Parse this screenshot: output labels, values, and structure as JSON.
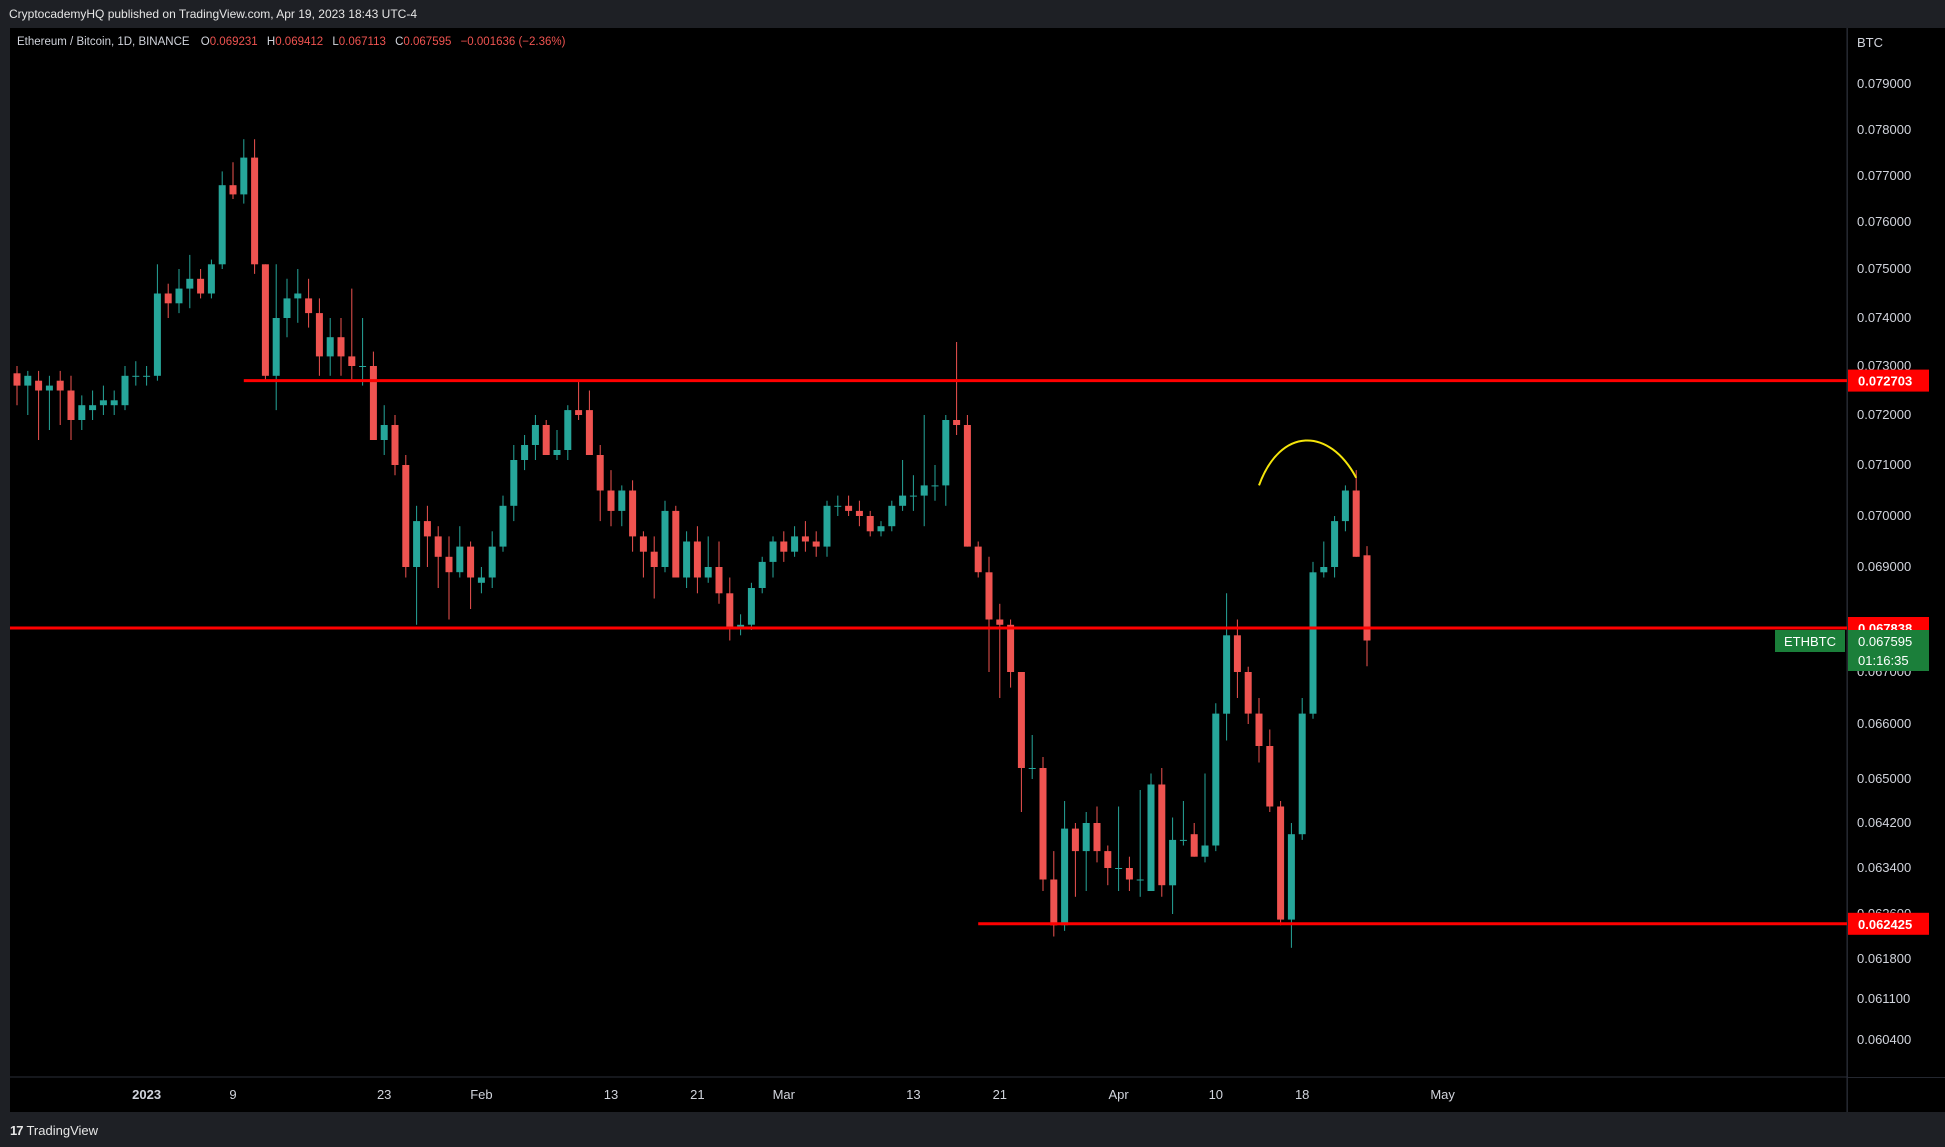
{
  "header": {
    "published_by": "CryptocademyHQ published on TradingView.com, Apr 19, 2023 18:43 UTC-4",
    "symbol": "Ethereum / Bitcoin, 1D, BINANCE",
    "o_label": "O",
    "o_value": "0.069231",
    "h_label": "H",
    "h_value": "0.069412",
    "l_label": "L",
    "l_value": "0.067113",
    "c_label": "C",
    "c_value": "0.067595",
    "change": "−0.001636 (−2.36%)"
  },
  "footer": {
    "brand": "TradingView",
    "brand_mark": "17"
  },
  "colors": {
    "up": "#26a69a",
    "down": "#ef5350",
    "level_line": "#ff0000",
    "current_price": "#1b7f3a",
    "arc": "#f5e50a",
    "background": "#000000"
  },
  "chart_data": {
    "type": "candlestick",
    "symbol": "ETHBTC",
    "currency_label": "BTC",
    "yticks": [
      0.079,
      0.078,
      0.077,
      0.076,
      0.075,
      0.074,
      0.073,
      0.072,
      0.071,
      0.07,
      0.069,
      0.067,
      0.066,
      0.065,
      0.0642,
      0.0634,
      0.0626,
      0.0618,
      0.0611,
      0.0604
    ],
    "ytick_labels": [
      "0.079000",
      "0.078000",
      "0.077000",
      "0.076000",
      "0.075000",
      "0.074000",
      "0.073000",
      "0.072000",
      "0.071000",
      "0.070000",
      "0.069000",
      "0.067000",
      "0.066000",
      "0.065000",
      "0.064200",
      "0.063400",
      "0.062600",
      "0.061800",
      "0.061100",
      "0.060400"
    ],
    "xticks": [
      {
        "date": "2023-01-01",
        "label": "2023",
        "bold": true
      },
      {
        "date": "2023-01-09",
        "label": "9"
      },
      {
        "date": "2023-01-23",
        "label": "23"
      },
      {
        "date": "2023-02-01",
        "label": "Feb"
      },
      {
        "date": "2023-02-13",
        "label": "13"
      },
      {
        "date": "2023-02-21",
        "label": "21"
      },
      {
        "date": "2023-03-01",
        "label": "Mar"
      },
      {
        "date": "2023-03-13",
        "label": "13"
      },
      {
        "date": "2023-03-21",
        "label": "21"
      },
      {
        "date": "2023-04-01",
        "label": "Apr"
      },
      {
        "date": "2023-04-10",
        "label": "10"
      },
      {
        "date": "2023-04-18",
        "label": "18"
      },
      {
        "date": "2023-05-01",
        "label": "May"
      }
    ],
    "levels": [
      {
        "price": 0.072703,
        "label": "0.072703",
        "from": "2023-01-10"
      },
      {
        "price": 0.067838,
        "label": "0.067838",
        "from": "start"
      },
      {
        "price": 0.062425,
        "label": "0.062425",
        "from": "2023-03-19"
      }
    ],
    "current": {
      "symbol_label": "ETHBTC",
      "price": 0.067595,
      "label": "0.067595",
      "countdown": "01:16:35"
    },
    "arc": {
      "start_date": "2023-04-14",
      "end_date": "2023-04-23",
      "start_price": 0.0706,
      "peak_price": 0.07146,
      "end_price": 0.07075
    },
    "candles": [
      {
        "d": "2022-12-20",
        "o": 0.07285,
        "h": 0.073,
        "l": 0.0722,
        "c": 0.0726
      },
      {
        "d": "2022-12-21",
        "o": 0.0726,
        "h": 0.0729,
        "l": 0.072,
        "c": 0.0728
      },
      {
        "d": "2022-12-22",
        "o": 0.0727,
        "h": 0.0729,
        "l": 0.0715,
        "c": 0.0725
      },
      {
        "d": "2022-12-23",
        "o": 0.0725,
        "h": 0.0728,
        "l": 0.0717,
        "c": 0.0726
      },
      {
        "d": "2022-12-24",
        "o": 0.0727,
        "h": 0.0729,
        "l": 0.0718,
        "c": 0.0725
      },
      {
        "d": "2022-12-25",
        "o": 0.0725,
        "h": 0.0728,
        "l": 0.0715,
        "c": 0.0719
      },
      {
        "d": "2022-12-26",
        "o": 0.0719,
        "h": 0.0724,
        "l": 0.0717,
        "c": 0.0722
      },
      {
        "d": "2022-12-27",
        "o": 0.0721,
        "h": 0.0725,
        "l": 0.0719,
        "c": 0.0722
      },
      {
        "d": "2022-12-28",
        "o": 0.0722,
        "h": 0.0726,
        "l": 0.072,
        "c": 0.0723
      },
      {
        "d": "2022-12-29",
        "o": 0.0722,
        "h": 0.0725,
        "l": 0.072,
        "c": 0.0723
      },
      {
        "d": "2022-12-30",
        "o": 0.0722,
        "h": 0.073,
        "l": 0.0721,
        "c": 0.0728
      },
      {
        "d": "2022-12-31",
        "o": 0.0728,
        "h": 0.0731,
        "l": 0.0726,
        "c": 0.0728
      },
      {
        "d": "2023-01-01",
        "o": 0.0728,
        "h": 0.073,
        "l": 0.0726,
        "c": 0.0728
      },
      {
        "d": "2023-01-02",
        "o": 0.0728,
        "h": 0.0751,
        "l": 0.0727,
        "c": 0.0745
      },
      {
        "d": "2023-01-03",
        "o": 0.0745,
        "h": 0.0747,
        "l": 0.074,
        "c": 0.0743
      },
      {
        "d": "2023-01-04",
        "o": 0.0743,
        "h": 0.075,
        "l": 0.0741,
        "c": 0.0746
      },
      {
        "d": "2023-01-05",
        "o": 0.0746,
        "h": 0.0753,
        "l": 0.0742,
        "c": 0.0748
      },
      {
        "d": "2023-01-06",
        "o": 0.0748,
        "h": 0.075,
        "l": 0.0744,
        "c": 0.0745
      },
      {
        "d": "2023-01-07",
        "o": 0.0745,
        "h": 0.0752,
        "l": 0.0744,
        "c": 0.0751
      },
      {
        "d": "2023-01-08",
        "o": 0.0751,
        "h": 0.0771,
        "l": 0.075,
        "c": 0.0768
      },
      {
        "d": "2023-01-09",
        "o": 0.0768,
        "h": 0.0773,
        "l": 0.0765,
        "c": 0.0766
      },
      {
        "d": "2023-01-10",
        "o": 0.0766,
        "h": 0.0778,
        "l": 0.0764,
        "c": 0.0774
      },
      {
        "d": "2023-01-11",
        "o": 0.0774,
        "h": 0.0778,
        "l": 0.0749,
        "c": 0.0751
      },
      {
        "d": "2023-01-12",
        "o": 0.0751,
        "h": 0.0751,
        "l": 0.0727,
        "c": 0.0728
      },
      {
        "d": "2023-01-13",
        "o": 0.0728,
        "h": 0.0751,
        "l": 0.0721,
        "c": 0.074
      },
      {
        "d": "2023-01-14",
        "o": 0.074,
        "h": 0.0748,
        "l": 0.0736,
        "c": 0.0744
      },
      {
        "d": "2023-01-15",
        "o": 0.0744,
        "h": 0.075,
        "l": 0.0739,
        "c": 0.0745
      },
      {
        "d": "2023-01-16",
        "o": 0.0744,
        "h": 0.0748,
        "l": 0.0738,
        "c": 0.0741
      },
      {
        "d": "2023-01-17",
        "o": 0.0741,
        "h": 0.0744,
        "l": 0.0728,
        "c": 0.0732
      },
      {
        "d": "2023-01-18",
        "o": 0.0732,
        "h": 0.074,
        "l": 0.0728,
        "c": 0.0736
      },
      {
        "d": "2023-01-19",
        "o": 0.0736,
        "h": 0.074,
        "l": 0.0728,
        "c": 0.0732
      },
      {
        "d": "2023-01-20",
        "o": 0.0732,
        "h": 0.0746,
        "l": 0.0727,
        "c": 0.073
      },
      {
        "d": "2023-01-21",
        "o": 0.073,
        "h": 0.074,
        "l": 0.0726,
        "c": 0.073
      },
      {
        "d": "2023-01-22",
        "o": 0.073,
        "h": 0.0733,
        "l": 0.0715,
        "c": 0.0715
      },
      {
        "d": "2023-01-23",
        "o": 0.0715,
        "h": 0.0722,
        "l": 0.0712,
        "c": 0.0718
      },
      {
        "d": "2023-01-24",
        "o": 0.0718,
        "h": 0.072,
        "l": 0.0708,
        "c": 0.071
      },
      {
        "d": "2023-01-25",
        "o": 0.071,
        "h": 0.0712,
        "l": 0.0688,
        "c": 0.069
      },
      {
        "d": "2023-01-26",
        "o": 0.069,
        "h": 0.0702,
        "l": 0.0679,
        "c": 0.0699
      },
      {
        "d": "2023-01-27",
        "o": 0.0699,
        "h": 0.0702,
        "l": 0.069,
        "c": 0.0696
      },
      {
        "d": "2023-01-28",
        "o": 0.0696,
        "h": 0.0698,
        "l": 0.0686,
        "c": 0.0692
      },
      {
        "d": "2023-01-29",
        "o": 0.0692,
        "h": 0.0696,
        "l": 0.068,
        "c": 0.0689
      },
      {
        "d": "2023-01-30",
        "o": 0.0689,
        "h": 0.0698,
        "l": 0.0688,
        "c": 0.0694
      },
      {
        "d": "2023-01-31",
        "o": 0.0694,
        "h": 0.0695,
        "l": 0.0682,
        "c": 0.0688
      },
      {
        "d": "2023-02-01",
        "o": 0.0687,
        "h": 0.069,
        "l": 0.0685,
        "c": 0.0688
      },
      {
        "d": "2023-02-02",
        "o": 0.0688,
        "h": 0.0697,
        "l": 0.0686,
        "c": 0.0694
      },
      {
        "d": "2023-02-03",
        "o": 0.0694,
        "h": 0.0704,
        "l": 0.0693,
        "c": 0.0702
      },
      {
        "d": "2023-02-04",
        "o": 0.0702,
        "h": 0.0714,
        "l": 0.0699,
        "c": 0.0711
      },
      {
        "d": "2023-02-05",
        "o": 0.0711,
        "h": 0.0716,
        "l": 0.0709,
        "c": 0.0714
      },
      {
        "d": "2023-02-06",
        "o": 0.0714,
        "h": 0.072,
        "l": 0.0711,
        "c": 0.0718
      },
      {
        "d": "2023-02-07",
        "o": 0.0718,
        "h": 0.0719,
        "l": 0.0712,
        "c": 0.0712
      },
      {
        "d": "2023-02-08",
        "o": 0.0712,
        "h": 0.0717,
        "l": 0.0711,
        "c": 0.0713
      },
      {
        "d": "2023-02-09",
        "o": 0.0713,
        "h": 0.0722,
        "l": 0.0711,
        "c": 0.0721
      },
      {
        "d": "2023-02-10",
        "o": 0.0721,
        "h": 0.0727,
        "l": 0.0719,
        "c": 0.072
      },
      {
        "d": "2023-02-11",
        "o": 0.0721,
        "h": 0.0725,
        "l": 0.0712,
        "c": 0.0712
      },
      {
        "d": "2023-02-12",
        "o": 0.0712,
        "h": 0.0714,
        "l": 0.0699,
        "c": 0.0705
      },
      {
        "d": "2023-02-13",
        "o": 0.0705,
        "h": 0.0709,
        "l": 0.0698,
        "c": 0.0701
      },
      {
        "d": "2023-02-14",
        "o": 0.0701,
        "h": 0.0706,
        "l": 0.0698,
        "c": 0.0705
      },
      {
        "d": "2023-02-15",
        "o": 0.0705,
        "h": 0.0707,
        "l": 0.0693,
        "c": 0.0696
      },
      {
        "d": "2023-02-16",
        "o": 0.0696,
        "h": 0.0697,
        "l": 0.0688,
        "c": 0.0693
      },
      {
        "d": "2023-02-17",
        "o": 0.0693,
        "h": 0.0696,
        "l": 0.0684,
        "c": 0.069
      },
      {
        "d": "2023-02-18",
        "o": 0.069,
        "h": 0.0703,
        "l": 0.0689,
        "c": 0.0701
      },
      {
        "d": "2023-02-19",
        "o": 0.0701,
        "h": 0.0702,
        "l": 0.0688,
        "c": 0.0688
      },
      {
        "d": "2023-02-20",
        "o": 0.0688,
        "h": 0.0697,
        "l": 0.0686,
        "c": 0.0695
      },
      {
        "d": "2023-02-21",
        "o": 0.0695,
        "h": 0.0698,
        "l": 0.0685,
        "c": 0.0688
      },
      {
        "d": "2023-02-22",
        "o": 0.0688,
        "h": 0.0696,
        "l": 0.0687,
        "c": 0.069
      },
      {
        "d": "2023-02-23",
        "o": 0.069,
        "h": 0.0695,
        "l": 0.0683,
        "c": 0.0685
      },
      {
        "d": "2023-02-24",
        "o": 0.0685,
        "h": 0.0688,
        "l": 0.0676,
        "c": 0.06785
      },
      {
        "d": "2023-02-25",
        "o": 0.06785,
        "h": 0.0681,
        "l": 0.0677,
        "c": 0.0679
      },
      {
        "d": "2023-02-26",
        "o": 0.0679,
        "h": 0.0687,
        "l": 0.0678,
        "c": 0.0686
      },
      {
        "d": "2023-02-27",
        "o": 0.0686,
        "h": 0.0692,
        "l": 0.0685,
        "c": 0.0691
      },
      {
        "d": "2023-02-28",
        "o": 0.0691,
        "h": 0.0696,
        "l": 0.0688,
        "c": 0.0695
      },
      {
        "d": "2023-03-01",
        "o": 0.0695,
        "h": 0.0697,
        "l": 0.0691,
        "c": 0.0693
      },
      {
        "d": "2023-03-02",
        "o": 0.0693,
        "h": 0.0698,
        "l": 0.0692,
        "c": 0.0696
      },
      {
        "d": "2023-03-03",
        "o": 0.0696,
        "h": 0.0699,
        "l": 0.0693,
        "c": 0.0695
      },
      {
        "d": "2023-03-04",
        "o": 0.0695,
        "h": 0.0697,
        "l": 0.0692,
        "c": 0.0694
      },
      {
        "d": "2023-03-05",
        "o": 0.0694,
        "h": 0.0703,
        "l": 0.0692,
        "c": 0.0702
      },
      {
        "d": "2023-03-06",
        "o": 0.0702,
        "h": 0.0704,
        "l": 0.07,
        "c": 0.0702
      },
      {
        "d": "2023-03-07",
        "o": 0.0702,
        "h": 0.0704,
        "l": 0.07,
        "c": 0.0701
      },
      {
        "d": "2023-03-08",
        "o": 0.0701,
        "h": 0.0703,
        "l": 0.0698,
        "c": 0.07
      },
      {
        "d": "2023-03-09",
        "o": 0.07,
        "h": 0.0701,
        "l": 0.0696,
        "c": 0.0697
      },
      {
        "d": "2023-03-10",
        "o": 0.0697,
        "h": 0.0699,
        "l": 0.0696,
        "c": 0.0698
      },
      {
        "d": "2023-03-11",
        "o": 0.0698,
        "h": 0.0703,
        "l": 0.0697,
        "c": 0.0702
      },
      {
        "d": "2023-03-12",
        "o": 0.0702,
        "h": 0.0711,
        "l": 0.0701,
        "c": 0.0704
      },
      {
        "d": "2023-03-13",
        "o": 0.0704,
        "h": 0.0708,
        "l": 0.0701,
        "c": 0.0704
      },
      {
        "d": "2023-03-14",
        "o": 0.0704,
        "h": 0.072,
        "l": 0.0698,
        "c": 0.0706
      },
      {
        "d": "2023-03-15",
        "o": 0.0706,
        "h": 0.071,
        "l": 0.0703,
        "c": 0.0706
      },
      {
        "d": "2023-03-16",
        "o": 0.0706,
        "h": 0.072,
        "l": 0.0702,
        "c": 0.0719
      },
      {
        "d": "2023-03-17",
        "o": 0.0719,
        "h": 0.0735,
        "l": 0.0716,
        "c": 0.0718
      },
      {
        "d": "2023-03-18",
        "o": 0.0718,
        "h": 0.072,
        "l": 0.0694,
        "c": 0.0694
      },
      {
        "d": "2023-03-19",
        "o": 0.0694,
        "h": 0.0695,
        "l": 0.0688,
        "c": 0.0689
      },
      {
        "d": "2023-03-20",
        "o": 0.0689,
        "h": 0.0692,
        "l": 0.067,
        "c": 0.068
      },
      {
        "d": "2023-03-21",
        "o": 0.068,
        "h": 0.0683,
        "l": 0.0665,
        "c": 0.0679
      },
      {
        "d": "2023-03-22",
        "o": 0.0679,
        "h": 0.068,
        "l": 0.0667,
        "c": 0.067
      },
      {
        "d": "2023-03-23",
        "o": 0.067,
        "h": 0.067,
        "l": 0.0644,
        "c": 0.0652
      },
      {
        "d": "2023-03-24",
        "o": 0.0652,
        "h": 0.0658,
        "l": 0.065,
        "c": 0.0652
      },
      {
        "d": "2023-03-25",
        "o": 0.0652,
        "h": 0.0654,
        "l": 0.063,
        "c": 0.0632
      },
      {
        "d": "2023-03-26",
        "o": 0.0632,
        "h": 0.0637,
        "l": 0.0622,
        "c": 0.0624
      },
      {
        "d": "2023-03-27",
        "o": 0.0624,
        "h": 0.0646,
        "l": 0.0623,
        "c": 0.0641
      },
      {
        "d": "2023-03-28",
        "o": 0.0641,
        "h": 0.0642,
        "l": 0.0629,
        "c": 0.0637
      },
      {
        "d": "2023-03-29",
        "o": 0.0637,
        "h": 0.0644,
        "l": 0.063,
        "c": 0.0642
      },
      {
        "d": "2023-03-30",
        "o": 0.0642,
        "h": 0.0645,
        "l": 0.0635,
        "c": 0.0637
      },
      {
        "d": "2023-03-31",
        "o": 0.0637,
        "h": 0.0638,
        "l": 0.0631,
        "c": 0.0634
      },
      {
        "d": "2023-04-01",
        "o": 0.0634,
        "h": 0.0645,
        "l": 0.063,
        "c": 0.0634
      },
      {
        "d": "2023-04-02",
        "o": 0.0634,
        "h": 0.0636,
        "l": 0.063,
        "c": 0.0632
      },
      {
        "d": "2023-04-03",
        "o": 0.0632,
        "h": 0.0648,
        "l": 0.0629,
        "c": 0.0632
      },
      {
        "d": "2023-04-04",
        "o": 0.063,
        "h": 0.0651,
        "l": 0.063,
        "c": 0.0649
      },
      {
        "d": "2023-04-05",
        "o": 0.0649,
        "h": 0.0652,
        "l": 0.0629,
        "c": 0.0631
      },
      {
        "d": "2023-04-06",
        "o": 0.0631,
        "h": 0.0643,
        "l": 0.0626,
        "c": 0.0639
      },
      {
        "d": "2023-04-07",
        "o": 0.0639,
        "h": 0.0646,
        "l": 0.0638,
        "c": 0.0639
      },
      {
        "d": "2023-04-08",
        "o": 0.064,
        "h": 0.0642,
        "l": 0.0636,
        "c": 0.0636
      },
      {
        "d": "2023-04-09",
        "o": 0.0636,
        "h": 0.0651,
        "l": 0.0635,
        "c": 0.0638
      },
      {
        "d": "2023-04-10",
        "o": 0.0638,
        "h": 0.0664,
        "l": 0.0637,
        "c": 0.0662
      },
      {
        "d": "2023-04-11",
        "o": 0.0662,
        "h": 0.0685,
        "l": 0.0657,
        "c": 0.0677
      },
      {
        "d": "2023-04-12",
        "o": 0.0677,
        "h": 0.068,
        "l": 0.0665,
        "c": 0.067
      },
      {
        "d": "2023-04-13",
        "o": 0.067,
        "h": 0.0671,
        "l": 0.066,
        "c": 0.0662
      },
      {
        "d": "2023-04-14",
        "o": 0.0662,
        "h": 0.0665,
        "l": 0.0653,
        "c": 0.0656
      },
      {
        "d": "2023-04-15",
        "o": 0.0656,
        "h": 0.0659,
        "l": 0.0644,
        "c": 0.0645
      },
      {
        "d": "2023-04-16",
        "o": 0.0645,
        "h": 0.0646,
        "l": 0.0624,
        "c": 0.0625
      },
      {
        "d": "2023-04-17",
        "o": 0.0625,
        "h": 0.0642,
        "l": 0.062,
        "c": 0.064
      },
      {
        "d": "2023-04-18",
        "o": 0.064,
        "h": 0.0665,
        "l": 0.0639,
        "c": 0.0662
      },
      {
        "d": "2023-04-19",
        "o": 0.0662,
        "h": 0.0691,
        "l": 0.0661,
        "c": 0.0689
      },
      {
        "d": "2023-04-20",
        "o": 0.0689,
        "h": 0.0695,
        "l": 0.0688,
        "c": 0.069
      },
      {
        "d": "2023-04-21",
        "o": 0.069,
        "h": 0.07,
        "l": 0.0688,
        "c": 0.0699
      },
      {
        "d": "2023-04-22",
        "o": 0.0699,
        "h": 0.0706,
        "l": 0.0697,
        "c": 0.0705
      },
      {
        "d": "2023-04-23",
        "o": 0.0705,
        "h": 0.0709,
        "l": 0.0692,
        "c": 0.0692
      },
      {
        "d": "2023-04-24",
        "o": 0.06923,
        "h": 0.06941,
        "l": 0.06711,
        "c": 0.0676
      }
    ]
  }
}
